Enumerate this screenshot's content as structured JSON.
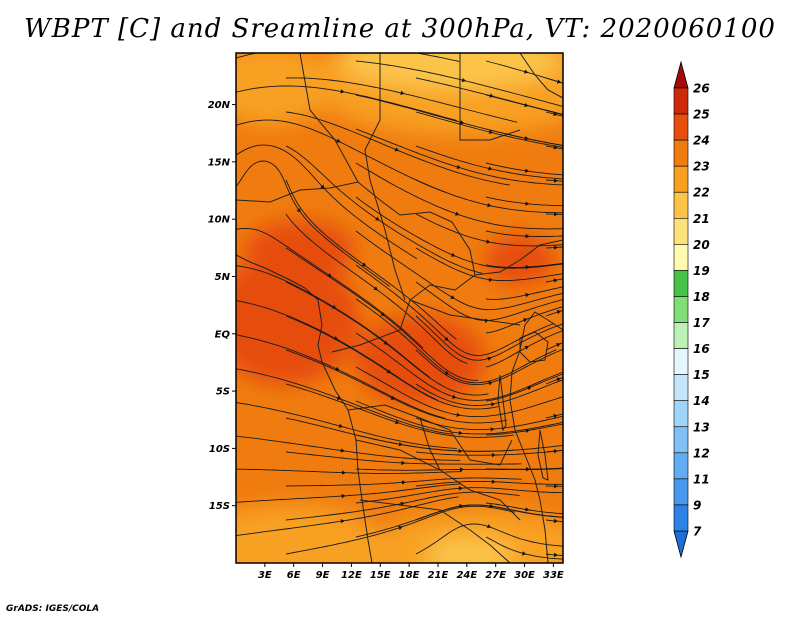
{
  "title": "WBPT [C] and Sreamline at 300hPa, VT: 2020060100",
  "credit": "GrADS: IGES/COLA",
  "colors": {
    "background": "#ffffff",
    "frame": "#000000",
    "streamline": "#1a1a1a"
  },
  "chart_data": {
    "type": "heatmap",
    "title": "WBPT [C] and Sreamline at 300hPa, VT: 2020060100",
    "variable": "WBPT [C]",
    "level": "300hPa",
    "valid_time": "2020060100",
    "x_ticks": [
      "3E",
      "6E",
      "9E",
      "12E",
      "15E",
      "18E",
      "21E",
      "24E",
      "27E",
      "30E",
      "33E"
    ],
    "y_ticks": [
      "20N",
      "15N",
      "10N",
      "5N",
      "EQ",
      "5S",
      "10S",
      "15S"
    ],
    "lon_range": [
      0,
      34
    ],
    "lat_range": [
      -20,
      24.5
    ],
    "colorbar": {
      "labels": [
        "7",
        "9",
        "11",
        "12",
        "13",
        "14",
        "15",
        "16",
        "17",
        "18",
        "19",
        "20",
        "21",
        "22",
        "23",
        "24",
        "25",
        "26"
      ],
      "colors": [
        "#1e6ed8",
        "#2d82e6",
        "#4898ee",
        "#62acf2",
        "#80c0f5",
        "#a0d4f8",
        "#c4e6fb",
        "#e6f6fc",
        "#bdf0b4",
        "#80de76",
        "#46c346",
        "#fffab0",
        "#fde27a",
        "#fbc448",
        "#f8a020",
        "#f07c10",
        "#e64e10",
        "#cc2a0a",
        "#a60a06"
      ],
      "extend": "both"
    }
  }
}
